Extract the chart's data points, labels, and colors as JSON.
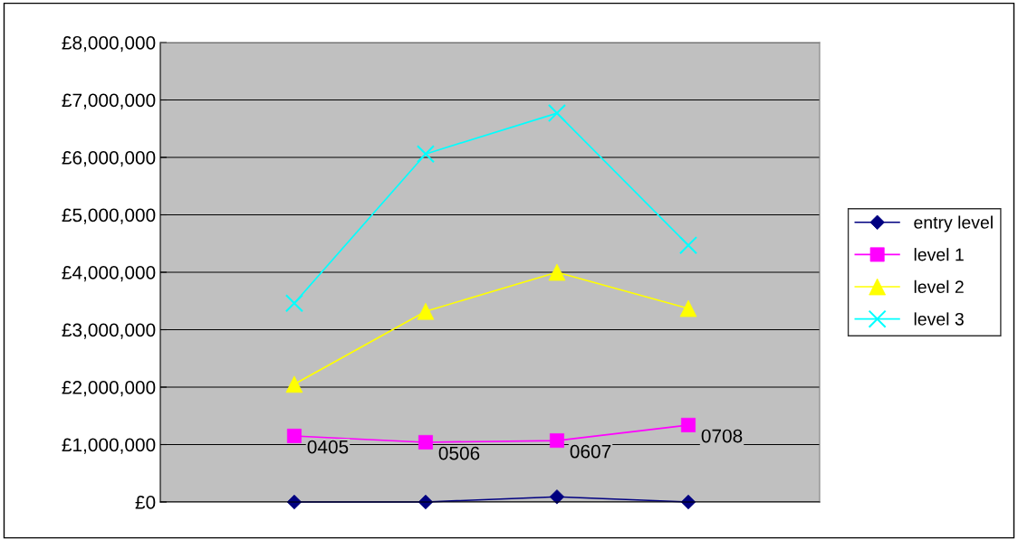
{
  "chart_data": {
    "type": "line",
    "categories": [
      null,
      null,
      null,
      null
    ],
    "annotations": [
      "0405",
      "0506",
      "0607",
      "0708"
    ],
    "series": [
      {
        "name": "entry level",
        "color": "#000080",
        "marker": "diamond",
        "values": [
          0,
          0,
          90000,
          0
        ]
      },
      {
        "name": "level 1",
        "color": "#ff00ff",
        "marker": "square",
        "values": [
          1150000,
          1040000,
          1070000,
          1340000
        ]
      },
      {
        "name": "level 2",
        "color": "#ffff00",
        "marker": "triangle",
        "values": [
          2050000,
          3320000,
          4000000,
          3370000
        ]
      },
      {
        "name": "level 3",
        "color": "#00ffff",
        "marker": "cross",
        "values": [
          3460000,
          6060000,
          6770000,
          4470000
        ]
      }
    ],
    "ylim": [
      0,
      8000000
    ],
    "yticks": [
      {
        "value": 0,
        "label": "£0"
      },
      {
        "value": 1000000,
        "label": "£1,000,000"
      },
      {
        "value": 2000000,
        "label": "£2,000,000"
      },
      {
        "value": 3000000,
        "label": "£3,000,000"
      },
      {
        "value": 4000000,
        "label": "£4,000,000"
      },
      {
        "value": 5000000,
        "label": "£5,000,000"
      },
      {
        "value": 6000000,
        "label": "£6,000,000"
      },
      {
        "value": 7000000,
        "label": "£7,000,000"
      },
      {
        "value": 8000000,
        "label": "£8,000,000"
      }
    ],
    "grid": "y",
    "legend": "right",
    "tick_labels": "y"
  }
}
